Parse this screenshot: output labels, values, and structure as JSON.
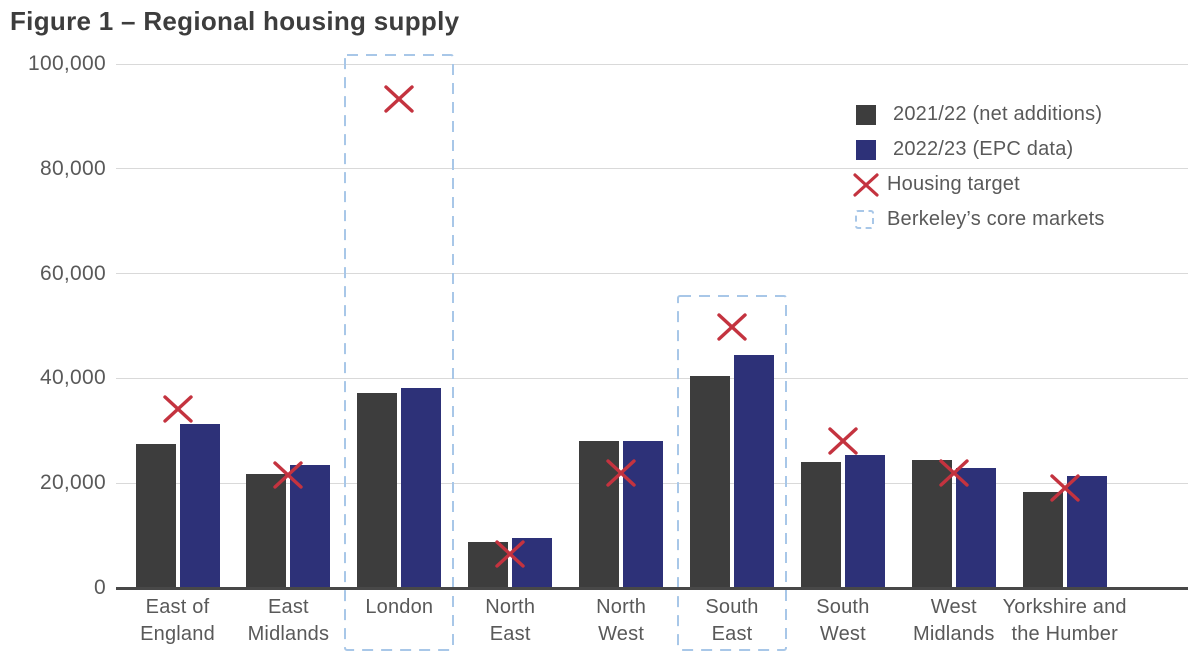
{
  "title": "Figure 1 – Regional housing supply",
  "colors": {
    "bar_2021": "#3d3d3d",
    "bar_2022": "#2d3178",
    "target": "#c4333f",
    "core_box": "#a8c7e8",
    "grid": "#d9d9d9",
    "axis": "#484848",
    "text": "#595959",
    "title_text": "#3d3d3d"
  },
  "legend": {
    "position": "top-right",
    "items": [
      {
        "label": "2021/22 (net additions)",
        "marker": "square"
      },
      {
        "label": "2022/23 (EPC data)",
        "marker": "square"
      },
      {
        "label": "Housing target",
        "marker": "x"
      },
      {
        "label": "Berkeley’s core markets",
        "marker": "dashed-box"
      }
    ]
  },
  "chart_data": {
    "type": "bar",
    "title": "Figure 1 – Regional housing supply",
    "categories": [
      "East of England",
      "East Midlands",
      "London",
      "North East",
      "North West",
      "South East",
      "South West",
      "West Midlands",
      "Yorkshire and the Humber"
    ],
    "category_label_lines": [
      [
        "East of",
        "England"
      ],
      [
        "East",
        "Midlands"
      ],
      [
        "London"
      ],
      [
        "North",
        "East"
      ],
      [
        "North",
        "West"
      ],
      [
        "South",
        "East"
      ],
      [
        "South",
        "West"
      ],
      [
        "West",
        "Midlands"
      ],
      [
        "Yorkshire and",
        "the Humber"
      ]
    ],
    "series": [
      {
        "name": "2021/22 (net additions)",
        "color": "#3d3d3d",
        "values": [
          27500,
          21800,
          37300,
          8800,
          28000,
          40500,
          24000,
          24400,
          18400
        ]
      },
      {
        "name": "2022/23 (EPC data)",
        "color": "#2d3178",
        "values": [
          31300,
          23500,
          38100,
          9500,
          28000,
          44500,
          25400,
          22900,
          21400
        ]
      }
    ],
    "housing_target": {
      "name": "Housing target",
      "color": "#c4333f",
      "values": [
        34200,
        21500,
        93400,
        6500,
        21900,
        49800,
        28000,
        21900,
        19000
      ]
    },
    "core_markets": {
      "label": "Berkeley’s core markets",
      "regions": [
        "London",
        "South East"
      ]
    },
    "ylim": [
      0,
      100000
    ],
    "yticks": [
      0,
      20000,
      40000,
      60000,
      80000,
      100000
    ],
    "ytick_labels": [
      "0",
      "20,000",
      "40,000",
      "60,000",
      "80,000",
      "100,000"
    ],
    "xlabel": "",
    "ylabel": "",
    "grid": "horizontal",
    "legend_position": "top-right"
  }
}
